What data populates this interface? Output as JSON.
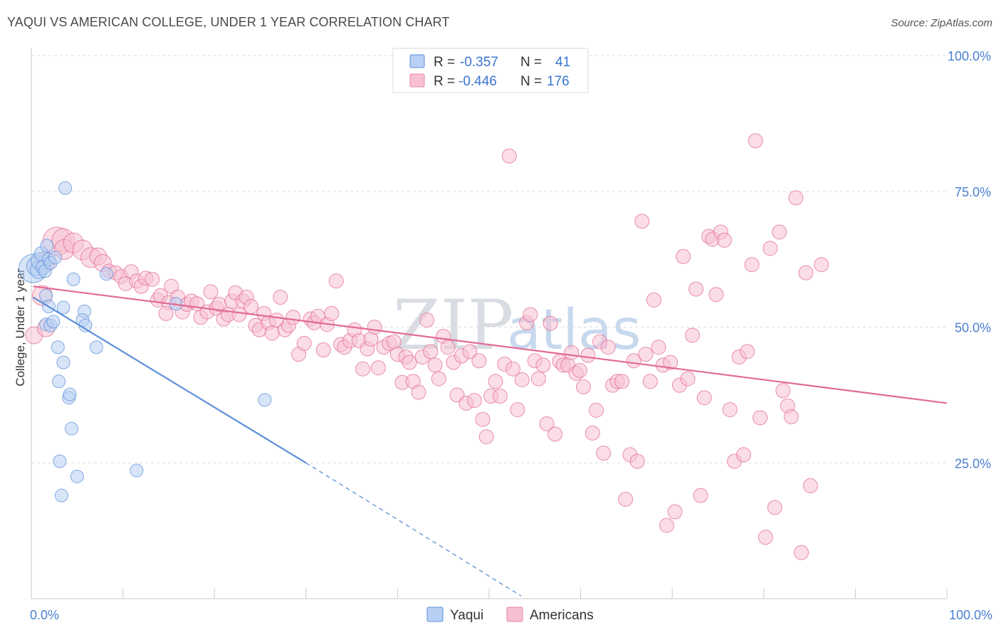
{
  "title": "YAQUI VS AMERICAN COLLEGE, UNDER 1 YEAR CORRELATION CHART",
  "source": "Source: ZipAtlas.com",
  "legend_top": [
    {
      "r_label": "R =",
      "r_value": "-0.357",
      "n_label": "N =",
      "n_value": "41",
      "fill": "#b8d0f3",
      "stroke": "#5b8fd8"
    },
    {
      "r_label": "R =",
      "r_value": "-0.446",
      "n_label": "N =",
      "n_value": "176",
      "fill": "#f7c1d2",
      "stroke": "#e786a6"
    }
  ],
  "legend_bottom": [
    {
      "label": "Yaqui",
      "fill": "#b8d0f3",
      "stroke": "#5b8fd8"
    },
    {
      "label": "Americans",
      "fill": "#f7c1d2",
      "stroke": "#e786a6"
    }
  ],
  "watermark": {
    "zip": "ZIP",
    "atlas": "atlas"
  },
  "chart_data": {
    "type": "scatter",
    "title": "YAQUI VS AMERICAN COLLEGE, UNDER 1 YEAR CORRELATION CHART",
    "xlabel": "",
    "ylabel": "College, Under 1 year",
    "xlim": [
      0,
      100
    ],
    "ylim": [
      0,
      100
    ],
    "x_tick_labels": [
      "0.0%",
      "100.0%"
    ],
    "y_ticks": [
      25,
      50,
      75,
      100
    ],
    "y_tick_labels": [
      "25.0%",
      "50.0%",
      "75.0%",
      "100.0%"
    ],
    "grid": true,
    "legend_placement": "top-center",
    "series": [
      {
        "name": "Yaqui",
        "color": "#5b8fd8",
        "fill": "#b8d0f3",
        "R": -0.357,
        "N": 41,
        "trend": {
          "x0": 0.2,
          "y0": 55.5,
          "x1": 30,
          "y1": 25,
          "dash_to_x": 53.5,
          "dash_to_y": 0.5
        },
        "points": [
          [
            0.2,
            60.8,
            20
          ],
          [
            0.5,
            61.2,
            13
          ],
          [
            0.8,
            60.5,
            12
          ],
          [
            0.9,
            62.2,
            12
          ],
          [
            1.1,
            63.5,
            10
          ],
          [
            1.3,
            61,
            10
          ],
          [
            1.5,
            60.3,
            9
          ],
          [
            1.7,
            65,
            9
          ],
          [
            1.9,
            62.5,
            9
          ],
          [
            2.1,
            61.8,
            9
          ],
          [
            2.6,
            62.8,
            9
          ],
          [
            1.6,
            55.8,
            9
          ],
          [
            1.9,
            53.8,
            9
          ],
          [
            1.6,
            50.5,
            9
          ],
          [
            2.1,
            50.3,
            9
          ],
          [
            2.4,
            51,
            9
          ],
          [
            3.5,
            53.6,
            9
          ],
          [
            2.9,
            46.3,
            9
          ],
          [
            3.5,
            43.5,
            9
          ],
          [
            3.0,
            40,
            9
          ],
          [
            4.1,
            37,
            9
          ],
          [
            4.2,
            37.6,
            9
          ],
          [
            4.4,
            31.3,
            9
          ],
          [
            3.1,
            25.3,
            9
          ],
          [
            5.0,
            22.5,
            9
          ],
          [
            3.3,
            19,
            9
          ],
          [
            3.7,
            75.6,
            9
          ],
          [
            4.6,
            58.8,
            9
          ],
          [
            5.8,
            52.9,
            9
          ],
          [
            5.6,
            51.3,
            9
          ],
          [
            5.9,
            50.3,
            9
          ],
          [
            7.1,
            46.3,
            9
          ],
          [
            8.2,
            59.8,
            9
          ],
          [
            11.5,
            23.6,
            9
          ],
          [
            15.8,
            54.3,
            9
          ],
          [
            25.5,
            36.6,
            9
          ]
        ]
      },
      {
        "name": "Americans",
        "color": "#e26b95",
        "fill": "#f7c1d2",
        "R": -0.446,
        "N": 176,
        "trend": {
          "x0": 0.2,
          "y0": 57.5,
          "x1": 100,
          "y1": 36
        },
        "points": [
          [
            0.3,
            48.5,
            12
          ],
          [
            1.2,
            55.8,
            14
          ],
          [
            1.6,
            49.8,
            12
          ],
          [
            1.5,
            62,
            14
          ],
          [
            2.8,
            65.8,
            20
          ],
          [
            3.5,
            66,
            16
          ],
          [
            3.6,
            64.3,
            14
          ],
          [
            4.6,
            65.5,
            14
          ],
          [
            5.6,
            64.2,
            14
          ],
          [
            6.5,
            62.8,
            14
          ],
          [
            7.3,
            63,
            12
          ],
          [
            7.8,
            61.8,
            12
          ],
          [
            8.5,
            60.3,
            10
          ],
          [
            9.2,
            60,
            10
          ],
          [
            9.8,
            59.3,
            10
          ],
          [
            10.3,
            58,
            10
          ],
          [
            10.9,
            60.2,
            10
          ],
          [
            11.5,
            58.5,
            10
          ],
          [
            12,
            57.5,
            10
          ],
          [
            12.5,
            59,
            10
          ],
          [
            13.2,
            58.8,
            10
          ],
          [
            13.8,
            55,
            10
          ],
          [
            14.1,
            55.8,
            10
          ],
          [
            15,
            54.5,
            10
          ],
          [
            14.7,
            52.5,
            10
          ],
          [
            15.3,
            57.5,
            10
          ],
          [
            16,
            55.5,
            10
          ],
          [
            16.5,
            52.8,
            10
          ],
          [
            17,
            54.2,
            10
          ],
          [
            17.5,
            54.8,
            10
          ],
          [
            18.1,
            54.3,
            10
          ],
          [
            18.5,
            51.8,
            10
          ],
          [
            19.2,
            52.8,
            10
          ],
          [
            19.6,
            56.5,
            10
          ],
          [
            20.2,
            53.5,
            10
          ],
          [
            20.5,
            54.2,
            10
          ],
          [
            21,
            51.5,
            10
          ],
          [
            21.5,
            52.3,
            10
          ],
          [
            21.9,
            54.8,
            10
          ],
          [
            22.3,
            56.3,
            10
          ],
          [
            22.7,
            52.3,
            10
          ],
          [
            23.1,
            54.8,
            10
          ],
          [
            23.5,
            55.5,
            10
          ],
          [
            24,
            53.8,
            10
          ],
          [
            24.5,
            50.3,
            10
          ],
          [
            24.9,
            49.5,
            10
          ],
          [
            25.4,
            52.5,
            10
          ],
          [
            25.9,
            50.8,
            10
          ],
          [
            26.3,
            48.9,
            10
          ],
          [
            26.8,
            51.3,
            10
          ],
          [
            27.2,
            55.5,
            10
          ],
          [
            27.7,
            49.5,
            10
          ],
          [
            28.1,
            50.3,
            10
          ],
          [
            28.6,
            51.8,
            10
          ],
          [
            29.2,
            45,
            10
          ],
          [
            29.8,
            47,
            10
          ],
          [
            30.5,
            51.5,
            10
          ],
          [
            30.9,
            50.8,
            10
          ],
          [
            31.3,
            52,
            10
          ],
          [
            31.9,
            45.8,
            10
          ],
          [
            32.3,
            50.5,
            10
          ],
          [
            32.8,
            52.5,
            10
          ],
          [
            33.3,
            58.5,
            10
          ],
          [
            33.8,
            46.8,
            10
          ],
          [
            34.2,
            46.3,
            10
          ],
          [
            34.8,
            47.5,
            10
          ],
          [
            35.3,
            49.5,
            10
          ],
          [
            35.8,
            47.5,
            10
          ],
          [
            36.2,
            42.3,
            10
          ],
          [
            36.7,
            46,
            10
          ],
          [
            37.1,
            47.8,
            10
          ],
          [
            37.5,
            50,
            10
          ],
          [
            37.9,
            42.5,
            10
          ],
          [
            38.5,
            46.3,
            10
          ],
          [
            39.1,
            47,
            10
          ],
          [
            39.6,
            47.3,
            10
          ],
          [
            40,
            45,
            10
          ],
          [
            40.5,
            39.8,
            10
          ],
          [
            40.9,
            44.5,
            10
          ],
          [
            41.3,
            43.5,
            10
          ],
          [
            41.7,
            40,
            10
          ],
          [
            42.3,
            38,
            10
          ],
          [
            42.7,
            44.5,
            10
          ],
          [
            43.2,
            51.3,
            10
          ],
          [
            43.6,
            45.5,
            10
          ],
          [
            44.1,
            43,
            10
          ],
          [
            44.5,
            40.5,
            10
          ],
          [
            45,
            48.3,
            10
          ],
          [
            45.5,
            46.3,
            10
          ],
          [
            46.1,
            43.5,
            10
          ],
          [
            46.5,
            37.5,
            10
          ],
          [
            47,
            44.7,
            10
          ],
          [
            47.5,
            36,
            10
          ],
          [
            47.9,
            45.5,
            10
          ],
          [
            48.4,
            36.5,
            10
          ],
          [
            48.9,
            43.8,
            10
          ],
          [
            49.3,
            33,
            10
          ],
          [
            49.7,
            29.8,
            10
          ],
          [
            50.2,
            37.3,
            10
          ],
          [
            50.7,
            40,
            10
          ],
          [
            51.2,
            37.3,
            10
          ],
          [
            51.7,
            43.2,
            10
          ],
          [
            52.2,
            81.5,
            10
          ],
          [
            52.6,
            42.3,
            10
          ],
          [
            53.1,
            34.8,
            10
          ],
          [
            53.6,
            40.3,
            10
          ],
          [
            54.1,
            50.8,
            10
          ],
          [
            54.5,
            52.3,
            10
          ],
          [
            55,
            43.8,
            10
          ],
          [
            55.4,
            40.5,
            10
          ],
          [
            55.9,
            43,
            10
          ],
          [
            56.3,
            32.2,
            10
          ],
          [
            56.7,
            50.7,
            10
          ],
          [
            57.2,
            30.3,
            10
          ],
          [
            57.7,
            43.7,
            10
          ],
          [
            58.1,
            43,
            10
          ],
          [
            58.6,
            43,
            10
          ],
          [
            59,
            45.3,
            10
          ],
          [
            59.5,
            41.5,
            10
          ],
          [
            59.9,
            42,
            10
          ],
          [
            60.3,
            39,
            10
          ],
          [
            60.8,
            44.8,
            10
          ],
          [
            61.3,
            30.5,
            10
          ],
          [
            61.7,
            34.7,
            10
          ],
          [
            62.1,
            47.3,
            10
          ],
          [
            62.5,
            26.8,
            10
          ],
          [
            63,
            46.3,
            10
          ],
          [
            63.5,
            39.3,
            10
          ],
          [
            64,
            40,
            10
          ],
          [
            64.5,
            40,
            10
          ],
          [
            64.9,
            18.3,
            10
          ],
          [
            65.4,
            26.5,
            10
          ],
          [
            65.8,
            43.8,
            10
          ],
          [
            66.2,
            25.3,
            10
          ],
          [
            66.7,
            69.5,
            10
          ],
          [
            67.1,
            45,
            10
          ],
          [
            67.6,
            40,
            10
          ],
          [
            68,
            55,
            10
          ],
          [
            68.5,
            46.3,
            10
          ],
          [
            69,
            43,
            10
          ],
          [
            69.4,
            13.5,
            10
          ],
          [
            69.8,
            43.5,
            10
          ],
          [
            70.3,
            16,
            10
          ],
          [
            70.8,
            39.3,
            10
          ],
          [
            71.2,
            63,
            10
          ],
          [
            71.7,
            40.5,
            10
          ],
          [
            72.2,
            48.5,
            10
          ],
          [
            72.6,
            57,
            10
          ],
          [
            73.1,
            19,
            10
          ],
          [
            73.5,
            37,
            10
          ],
          [
            74,
            66.7,
            10
          ],
          [
            74.4,
            66.2,
            10
          ],
          [
            74.8,
            56,
            10
          ],
          [
            75.3,
            67.5,
            10
          ],
          [
            75.7,
            66,
            10
          ],
          [
            76.3,
            34.8,
            10
          ],
          [
            76.8,
            25.3,
            10
          ],
          [
            77.3,
            44.5,
            10
          ],
          [
            77.8,
            26.5,
            10
          ],
          [
            78.2,
            45.5,
            10
          ],
          [
            78.7,
            61.5,
            10
          ],
          [
            79.1,
            84.3,
            10
          ],
          [
            79.6,
            33.3,
            10
          ],
          [
            80.2,
            11.3,
            10
          ],
          [
            80.7,
            64.5,
            10
          ],
          [
            81.2,
            16.8,
            10
          ],
          [
            81.7,
            67.5,
            10
          ],
          [
            82.1,
            38.3,
            10
          ],
          [
            82.6,
            35.5,
            10
          ],
          [
            83,
            33.5,
            10
          ],
          [
            83.5,
            73.8,
            10
          ],
          [
            84.1,
            8.5,
            10
          ],
          [
            84.6,
            60,
            10
          ],
          [
            85.1,
            20.8,
            10
          ],
          [
            86.3,
            61.5,
            10
          ]
        ]
      }
    ]
  }
}
